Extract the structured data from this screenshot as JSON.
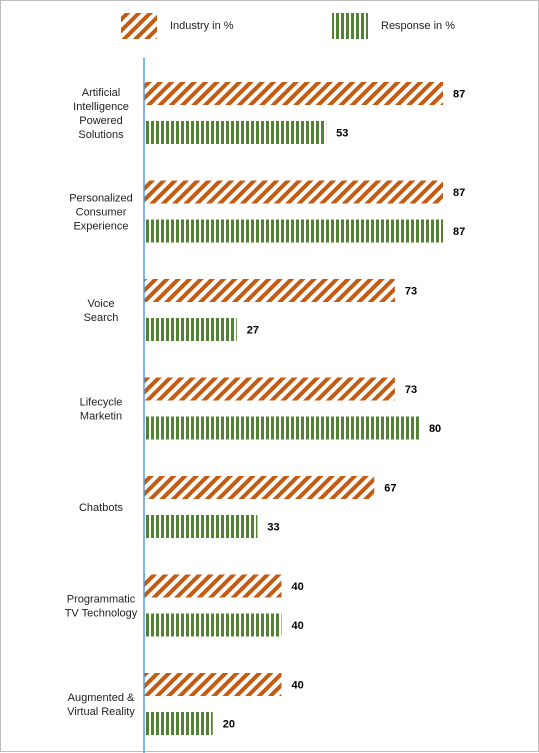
{
  "chart_data": {
    "type": "bar",
    "orientation": "horizontal",
    "categories": [
      [
        "Artificial",
        "Intelligence",
        "Powered",
        "Solutions"
      ],
      [
        "Personalized",
        "Consumer",
        "Experience"
      ],
      [
        "Voice",
        "Search"
      ],
      [
        "Lifecycle",
        "Marketin"
      ],
      [
        "Chatbots"
      ],
      [
        "Programmatic",
        "TV Technology"
      ],
      [
        "Augmented &",
        "Virtual Reality"
      ]
    ],
    "series": [
      {
        "name": "Industry in %",
        "values": [
          87,
          87,
          73,
          73,
          67,
          40,
          40
        ],
        "color": "#c55a11",
        "pattern": "diagonal-stripes"
      },
      {
        "name": "Response in %",
        "values": [
          53,
          87,
          27,
          80,
          33,
          40,
          20
        ],
        "color": "#548235",
        "pattern": "vertical-stripes"
      }
    ],
    "xlim": [
      0,
      87
    ],
    "legend_position": "top",
    "axis_color": "#5b9bd5",
    "grid": false,
    "title": "",
    "xlabel": "",
    "ylabel": ""
  }
}
